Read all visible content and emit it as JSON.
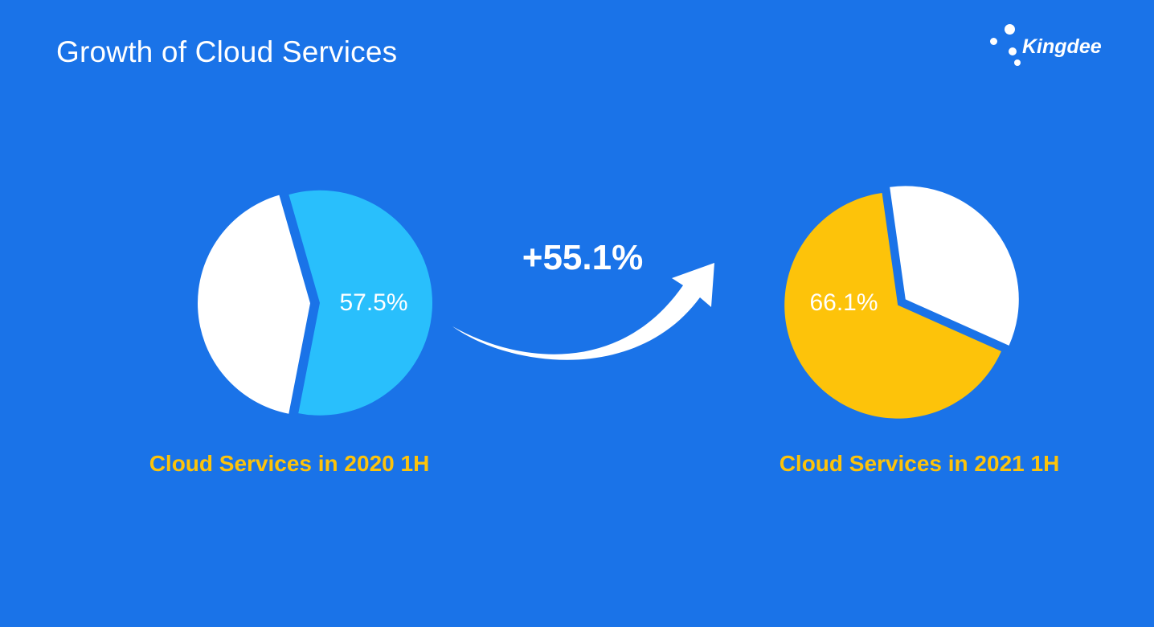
{
  "title": "Growth of Cloud Services",
  "brand": {
    "name": "Kingdee",
    "icon": "kingdee-dots-logo-icon"
  },
  "growth": {
    "label": "+55.1%",
    "icon": "curved-arrow-icon"
  },
  "colors": {
    "background": "#1a73e8",
    "slice_2020": "#29bffc",
    "slice_2021": "#fdc30a",
    "remainder": "#ffffff",
    "caption": "#fdc30a"
  },
  "chart_data": [
    {
      "type": "pie",
      "title": "Cloud Services in 2020 1H",
      "slices": [
        {
          "value": 57.5,
          "label": "57.5%",
          "color": "#29bffc"
        },
        {
          "value": 42.5,
          "label": "",
          "color": "#ffffff"
        }
      ]
    },
    {
      "type": "pie",
      "title": "Cloud Services in 2021 1H",
      "slices": [
        {
          "value": 66.1,
          "label": "66.1%",
          "color": "#fdc30a"
        },
        {
          "value": 33.9,
          "label": "",
          "color": "#ffffff"
        }
      ]
    }
  ]
}
